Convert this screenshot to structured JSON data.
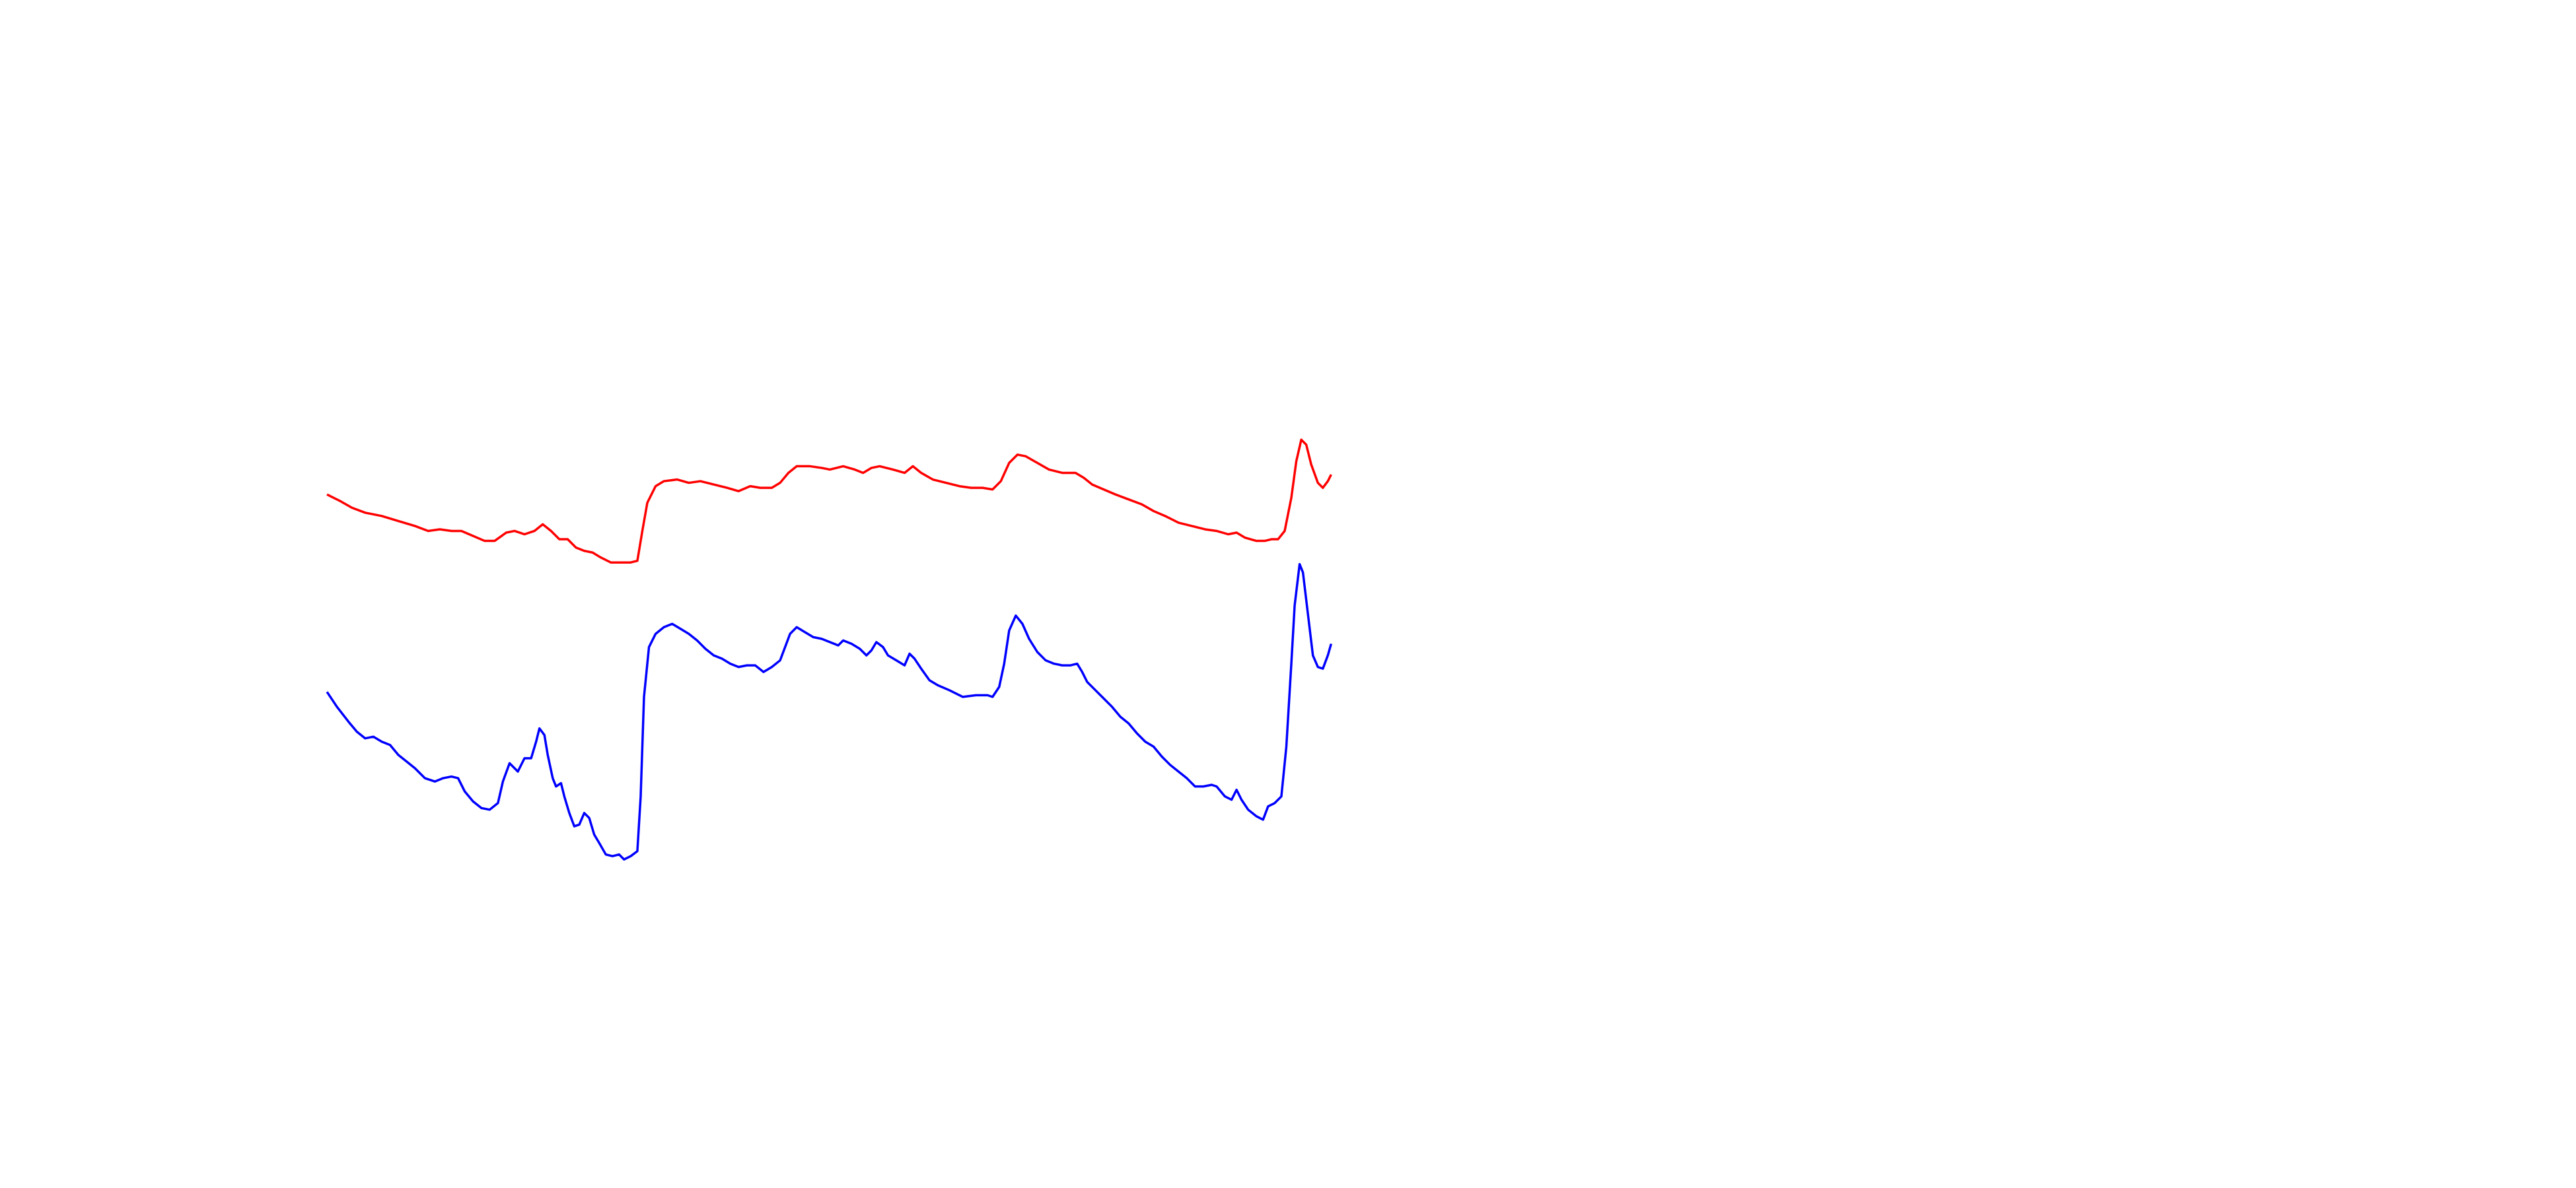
{
  "chart_data": {
    "type": "line",
    "xlim": [
      0,
      1552
    ],
    "ylim": [
      716,
      0
    ],
    "series": [
      {
        "color": "#ff0000",
        "x": [
          197,
          205,
          212,
          220,
          230,
          240,
          250,
          258,
          265,
          272,
          278,
          285,
          292,
          298,
          305,
          310,
          316,
          322,
          327,
          332,
          337,
          342,
          347,
          352,
          357,
          362,
          368,
          375,
          380,
          384,
          387,
          390,
          395,
          400,
          408,
          415,
          422,
          430,
          438,
          445,
          452,
          458,
          465,
          470,
          475,
          480,
          488,
          495,
          500,
          508,
          515,
          520,
          525,
          530,
          538,
          545,
          550,
          555,
          562,
          570,
          578,
          585,
          592,
          598,
          603,
          608,
          613,
          618,
          625,
          632,
          640,
          648,
          653,
          658,
          665,
          672,
          680,
          688,
          695,
          702,
          710,
          718,
          726,
          733,
          740,
          745,
          750,
          757,
          762,
          766,
          770,
          774,
          778,
          781,
          784,
          787,
          790,
          794,
          797,
          800,
          802
        ],
        "values": [
          298,
          302,
          306,
          309,
          311,
          314,
          317,
          320,
          319,
          320,
          320,
          323,
          326,
          326,
          321,
          320,
          322,
          320,
          316,
          320,
          325,
          325,
          330,
          332,
          333,
          336,
          339,
          339,
          339,
          338,
          320,
          303,
          293,
          290,
          289,
          291,
          290,
          292,
          294,
          296,
          293,
          294,
          294,
          291,
          285,
          281,
          281,
          282,
          283,
          281,
          283,
          285,
          282,
          281,
          283,
          285,
          281,
          285,
          289,
          291,
          293,
          294,
          294,
          295,
          290,
          279,
          274,
          275,
          279,
          283,
          285,
          285,
          288,
          292,
          295,
          298,
          301,
          304,
          308,
          311,
          315,
          317,
          319,
          320,
          322,
          321,
          324,
          326,
          326,
          325,
          325,
          320,
          300,
          278,
          265,
          268,
          280,
          291,
          294,
          290,
          286
        ]
      },
      {
        "color": "#0000ff",
        "x": [
          197,
          203,
          210,
          215,
          220,
          225,
          230,
          235,
          240,
          245,
          250,
          256,
          262,
          267,
          272,
          276,
          280,
          285,
          290,
          295,
          300,
          303,
          307,
          312,
          316,
          320,
          323,
          325,
          328,
          330,
          333,
          335,
          338,
          340,
          343,
          346,
          349,
          352,
          355,
          358,
          361,
          365,
          369,
          373,
          376,
          380,
          384,
          386,
          388,
          391,
          395,
          400,
          405,
          410,
          415,
          420,
          425,
          430,
          435,
          440,
          445,
          450,
          455,
          460,
          465,
          470,
          473,
          476,
          480,
          485,
          490,
          495,
          500,
          505,
          508,
          513,
          518,
          522,
          525,
          528,
          532,
          535,
          540,
          545,
          548,
          551,
          555,
          560,
          565,
          572,
          580,
          588,
          595,
          598,
          602,
          605,
          608,
          612,
          616,
          620,
          625,
          630,
          635,
          640,
          645,
          649,
          652,
          655,
          660,
          665,
          670,
          675,
          680,
          685,
          690,
          695,
          700,
          705,
          710,
          715,
          720,
          725,
          730,
          733,
          738,
          742,
          745,
          748,
          752,
          757,
          761,
          764,
          768,
          772,
          775,
          778,
          780,
          783,
          785,
          788,
          791,
          794,
          797,
          800,
          802
        ],
        "values": [
          417,
          426,
          435,
          441,
          445,
          444,
          447,
          449,
          455,
          459,
          463,
          469,
          471,
          469,
          468,
          469,
          477,
          483,
          487,
          488,
          484,
          471,
          460,
          465,
          457,
          457,
          447,
          439,
          443,
          455,
          469,
          474,
          472,
          480,
          490,
          498,
          497,
          490,
          493,
          503,
          508,
          515,
          516,
          515,
          518,
          516,
          513,
          480,
          420,
          390,
          382,
          378,
          376,
          379,
          382,
          386,
          391,
          395,
          397,
          400,
          402,
          401,
          401,
          405,
          402,
          398,
          390,
          382,
          378,
          381,
          384,
          385,
          387,
          389,
          386,
          388,
          391,
          395,
          392,
          387,
          390,
          395,
          398,
          401,
          394,
          397,
          403,
          410,
          413,
          416,
          420,
          419,
          419,
          420,
          414,
          400,
          380,
          371,
          376,
          385,
          393,
          398,
          400,
          401,
          401,
          400,
          405,
          411,
          416,
          421,
          426,
          432,
          436,
          442,
          447,
          450,
          456,
          461,
          465,
          469,
          474,
          474,
          473,
          474,
          480,
          482,
          476,
          482,
          488,
          492,
          494,
          486,
          484,
          480,
          450,
          400,
          365,
          340,
          345,
          370,
          395,
          402,
          403,
          395,
          388
        ]
      }
    ]
  }
}
